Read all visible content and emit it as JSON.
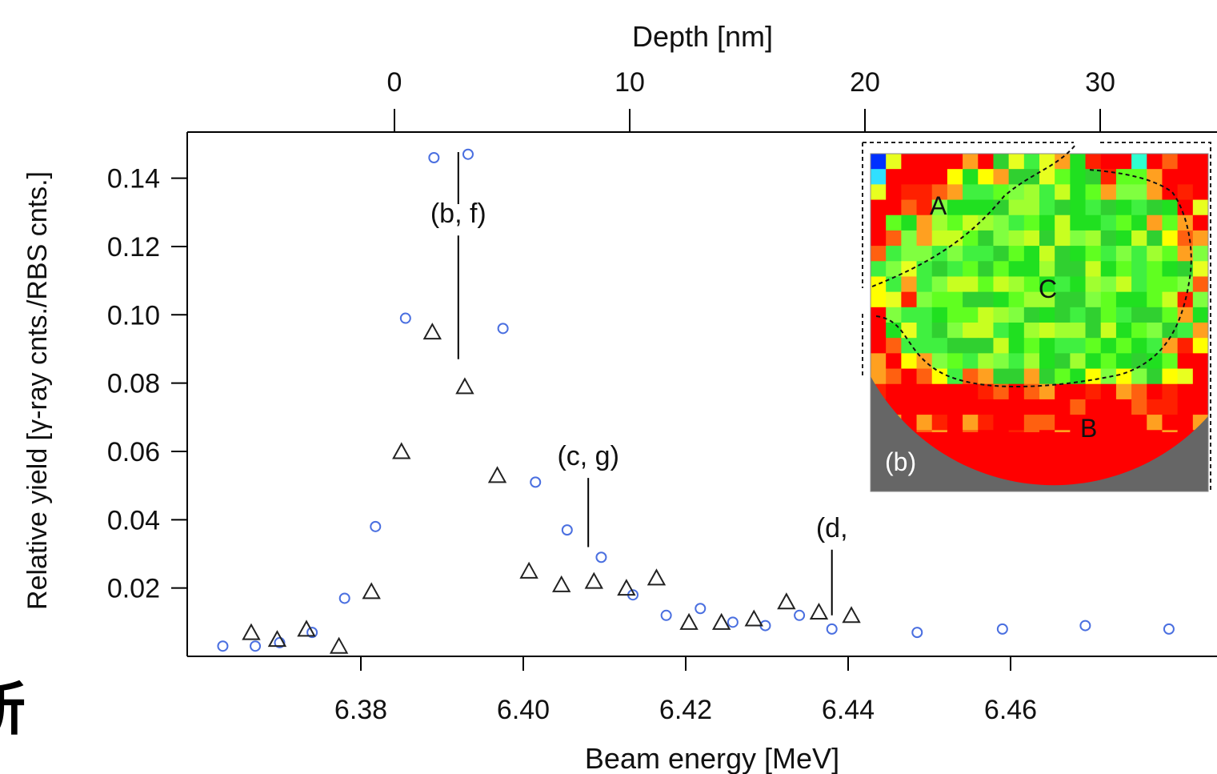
{
  "chart_data": {
    "type": "scatter",
    "xlabel": "Beam energy [MeV]",
    "ylabel": "Relative yield [γ-ray cnts./RBS cnts.]",
    "top_axis_label": "Depth [nm]",
    "xlim": [
      6.362,
      6.479
    ],
    "ylim": [
      0,
      0.1535
    ],
    "x_ticks": [
      6.38,
      6.4,
      6.42,
      6.44,
      6.46
    ],
    "x_tick_labels": [
      "6.38",
      "6.40",
      "6.42",
      "6.44",
      "6.46"
    ],
    "y_ticks": [
      0.02,
      0.04,
      0.06,
      0.08,
      0.1,
      0.12,
      0.14
    ],
    "y_tick_labels": [
      "0.02",
      "0.04",
      "0.06",
      "0.08",
      "0.10",
      "0.12",
      "0.14"
    ],
    "top_ticks": [
      0,
      10,
      20,
      30
    ],
    "top_tick_labels": [
      "0",
      "10",
      "20",
      "30"
    ],
    "grid": false,
    "series": [
      {
        "marker": "circle",
        "color": "#4a6fe0",
        "x": [
          6.363,
          6.367,
          6.37,
          6.374,
          6.378,
          6.3818,
          6.3855,
          6.389,
          6.3932,
          6.3975,
          6.4015,
          6.4054,
          6.4096,
          6.4135,
          6.4176,
          6.4218,
          6.4258,
          6.4298,
          6.434,
          6.438,
          6.4485,
          6.459,
          6.4692,
          6.4795
        ],
        "y": [
          0.003,
          0.003,
          0.004,
          0.007,
          0.017,
          0.038,
          0.099,
          0.146,
          0.147,
          0.096,
          0.051,
          0.037,
          0.029,
          0.018,
          0.012,
          0.014,
          0.01,
          0.009,
          0.012,
          0.008,
          0.007,
          0.008,
          0.009,
          0.008
        ]
      },
      {
        "marker": "triangle",
        "color": "#222222",
        "x": [
          6.3665,
          6.3697,
          6.3733,
          6.3773,
          6.3813,
          6.385,
          6.3888,
          6.3928,
          6.3968,
          6.4007,
          6.4047,
          6.4087,
          6.4127,
          6.4164,
          6.4204,
          6.4244,
          6.4284,
          6.4324,
          6.4364,
          6.4404
        ],
        "y": [
          0.007,
          0.005,
          0.008,
          0.003,
          0.019,
          0.06,
          0.095,
          0.079,
          0.053,
          0.025,
          0.021,
          0.022,
          0.02,
          0.023,
          0.01,
          0.01,
          0.011,
          0.016,
          0.013,
          0.012
        ]
      }
    ],
    "annotations": [
      {
        "text": "(b, f)",
        "x": 6.392,
        "y_top": 0.134,
        "y_bottom": 0.087
      },
      {
        "text": "(c, g)",
        "x": 6.408,
        "y_top": 0.063,
        "y_bottom": 0.032
      },
      {
        "text": "(d, ",
        "x": 6.438,
        "y_top": 0.042,
        "y_bottom": 0.012
      }
    ],
    "inset": {
      "label": "(b)",
      "regions": [
        "A",
        "B",
        "C"
      ]
    }
  },
  "page_fragment": "所"
}
